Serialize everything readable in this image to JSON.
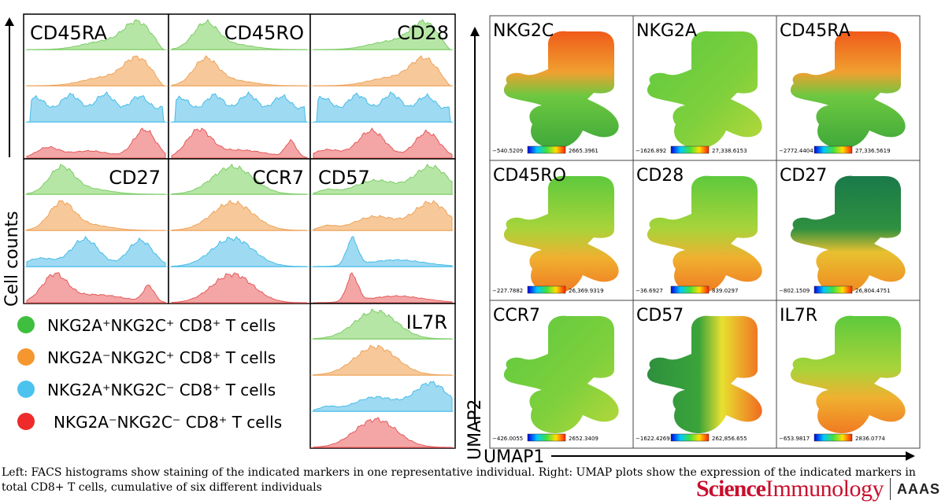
{
  "facs": {
    "y_axis_label": "Cell counts",
    "panels": [
      {
        "label": "CD45RA",
        "shapes": [
          "skewR",
          "skewR",
          "flat",
          "bimodalR"
        ]
      },
      {
        "label": "CD45RO",
        "shapes": [
          "skewL",
          "skewL",
          "flat",
          "bimodalL"
        ]
      },
      {
        "label": "CD28",
        "shapes": [
          "skewR",
          "skewR",
          "flat",
          "bimodal"
        ]
      },
      {
        "label": "CD27",
        "shapes": [
          "skewL",
          "skewL",
          "bimodal",
          "bimodalL"
        ]
      },
      {
        "label": "CCR7",
        "shapes": [
          "mid",
          "mid",
          "mid",
          "mid"
        ]
      },
      {
        "label": "CD57",
        "shapes": [
          "rampR",
          "rampR",
          "spikeL",
          "spikeL"
        ]
      },
      {
        "label": "IL7R",
        "shapes": [
          "mid",
          "mid",
          "rampR",
          "mid"
        ]
      }
    ],
    "legend": [
      {
        "text": "NKG2A⁺NKG2C⁺ CD8⁺ T cells",
        "color": "#3fbf3f"
      },
      {
        "text": "NKG2A⁻NKG2C⁺ CD8⁺ T cells",
        "color": "#f5962f"
      },
      {
        "text": "NKG2A⁺NKG2C⁻ CD8⁺ T cells",
        "color": "#4cc3ef"
      },
      {
        "text": "NKG2A⁻NKG2C⁻ CD8⁺ T cells",
        "color": "#ee2a2a"
      }
    ]
  },
  "umap": {
    "x_axis_label": "UMAP1",
    "y_axis_label": "UMAP2",
    "panels": [
      {
        "label": "NKG2C",
        "min": "−540.5209",
        "max": "2665.3961",
        "scheme": "tophot"
      },
      {
        "label": "NKG2A",
        "min": "−1626.892",
        "max": "27,338.6153",
        "scheme": "green"
      },
      {
        "label": "CD45RA",
        "min": "−2772.4404",
        "max": "27,336.5619",
        "scheme": "tophot"
      },
      {
        "label": "CD45RO",
        "min": "−227.7882",
        "max": "26,369.9319",
        "scheme": "bothot"
      },
      {
        "label": "CD28",
        "min": "−36.6927",
        "max": "839.0297",
        "scheme": "bothot"
      },
      {
        "label": "CD27",
        "min": "−802.1509",
        "max": "26,804.4751",
        "scheme": "cd27"
      },
      {
        "label": "CCR7",
        "min": "−426.0055",
        "max": "2652.3409",
        "scheme": "green"
      },
      {
        "label": "CD57",
        "min": "−1622.4269",
        "max": "262,856.655",
        "scheme": "cd57"
      },
      {
        "label": "IL7R",
        "min": "−653.9817",
        "max": "2836.0774",
        "scheme": "bothot"
      }
    ]
  },
  "caption": "Left: FACS histograms show staining of the indicated markers in one representative individual. Right: UMAP plots show the expression of the indicated markers in total CD8+ T cells, cumulative of six different individuals",
  "brand": {
    "science": "Science",
    "immunology": "Immunology",
    "aaas": "AAAS"
  }
}
